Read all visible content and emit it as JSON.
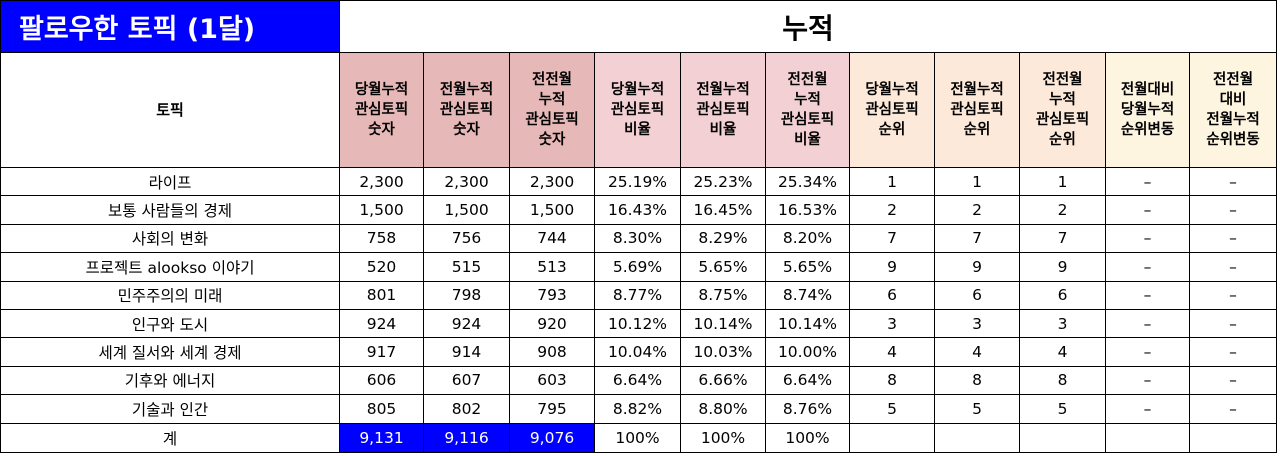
{
  "title": "팔로우한 토픽 (1달)",
  "section_title": "누적",
  "topic_header": "토픽",
  "column_headers": [
    [
      "당월누적",
      "관심토픽",
      "숫자"
    ],
    [
      "전월누적",
      "관심토픽",
      "숫자"
    ],
    [
      "전전월",
      "누적",
      "관심토픽",
      "숫자"
    ],
    [
      "당월누적",
      "관심토픽",
      "비율"
    ],
    [
      "전월누적",
      "관심토픽",
      "비율"
    ],
    [
      "전전월",
      "누적",
      "관심토픽",
      "비율"
    ],
    [
      "당월누적",
      "관심토픽",
      "순위"
    ],
    [
      "전월누적",
      "관심토픽",
      "순위"
    ],
    [
      "전전월",
      "누적",
      "관심토픽",
      "순위"
    ],
    [
      "전월대비",
      "당월누적",
      "순위변동"
    ],
    [
      "전전월",
      "대비",
      "전월누적",
      "순위변동"
    ]
  ],
  "rows": [
    [
      "라이프",
      "2,300",
      "2,300",
      "2,300",
      "25.19%",
      "25.23%",
      "25.34%",
      "1",
      "1",
      "1",
      "–",
      "–"
    ],
    [
      "보통 사람들의 경제",
      "1,500",
      "1,500",
      "1,500",
      "16.43%",
      "16.45%",
      "16.53%",
      "2",
      "2",
      "2",
      "–",
      "–"
    ],
    [
      "사회의 변화",
      "758",
      "756",
      "744",
      "8.30%",
      "8.29%",
      "8.20%",
      "7",
      "7",
      "7",
      "–",
      "–"
    ],
    [
      "프로젝트 alookso 이야기",
      "520",
      "515",
      "513",
      "5.69%",
      "5.65%",
      "5.65%",
      "9",
      "9",
      "9",
      "–",
      "–"
    ],
    [
      "민주주의의 미래",
      "801",
      "798",
      "793",
      "8.77%",
      "8.75%",
      "8.74%",
      "6",
      "6",
      "6",
      "–",
      "–"
    ],
    [
      "인구와 도시",
      "924",
      "924",
      "920",
      "10.12%",
      "10.14%",
      "10.14%",
      "3",
      "3",
      "3",
      "–",
      "–"
    ],
    [
      "세계 질서와 세계 경제",
      "917",
      "914",
      "908",
      "10.04%",
      "10.03%",
      "10.00%",
      "4",
      "4",
      "4",
      "–",
      "–"
    ],
    [
      "기후와 에너지",
      "606",
      "607",
      "603",
      "6.64%",
      "6.66%",
      "6.64%",
      "8",
      "8",
      "8",
      "–",
      "–"
    ],
    [
      "기술과 인간",
      "805",
      "802",
      "795",
      "8.82%",
      "8.80%",
      "8.76%",
      "5",
      "5",
      "5",
      "–",
      "–"
    ]
  ],
  "total": [
    "계",
    "9,131",
    "9,116",
    "9,076",
    "100%",
    "100%",
    "100%",
    "",
    "",
    "",
    "",
    ""
  ],
  "colors": {
    "title_bg": "#0000ff",
    "count_header_bg": "#e6b8b7",
    "ratio_header_bg": "#f2d0d3",
    "rank_header_bg": "#fde9d9",
    "change_header_bg": "#fef5e1",
    "total_highlight_bg": "#0000ff"
  }
}
